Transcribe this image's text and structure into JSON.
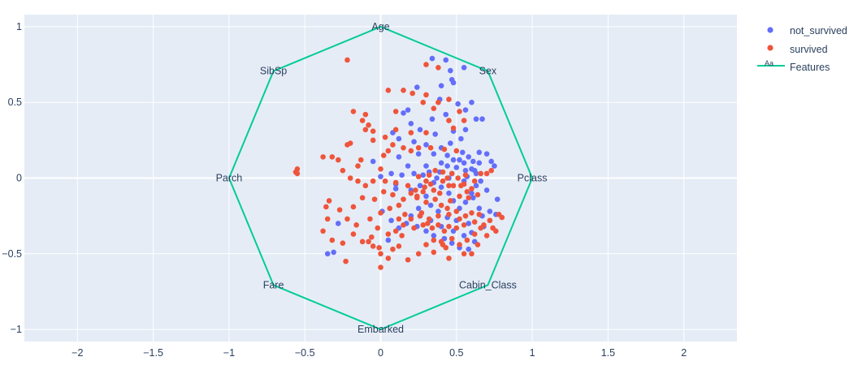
{
  "chart_data": {
    "type": "scatter",
    "title": "",
    "xlabel": "",
    "ylabel": "",
    "xlim": [
      -2.35,
      2.35
    ],
    "ylim": [
      -1.08,
      1.08
    ],
    "x_ticks": [
      -2,
      -1.5,
      -1,
      -0.5,
      0,
      0.5,
      1,
      1.5,
      2
    ],
    "x_tick_labels": [
      "−2",
      "−1.5",
      "−1",
      "−0.5",
      "0",
      "0.5",
      "1",
      "1.5",
      "2"
    ],
    "y_ticks": [
      1,
      0.5,
      0,
      -0.5,
      -1
    ],
    "y_tick_labels": [
      "1",
      "0.5",
      "0",
      "−0.5",
      "−1"
    ],
    "grid": true,
    "legend_position": "top-right",
    "colors": {
      "plot_bg": "#e5ecf6",
      "grid": "#ffffff",
      "not_survived": "#636efa",
      "survived": "#ef553b",
      "features": "#00cc96"
    },
    "features": {
      "name": "Features",
      "labels": [
        "Age",
        "Sex",
        "Pclass",
        "Cabin_Class",
        "Embarked",
        "Fare",
        "Parch",
        "SibSp"
      ],
      "x": [
        0,
        0.707,
        1,
        0.707,
        0,
        -0.707,
        -1,
        -0.707
      ],
      "y": [
        1,
        0.707,
        0,
        -0.707,
        -1,
        -0.707,
        0,
        0.707
      ]
    },
    "series": [
      {
        "name": "not_survived",
        "points": [
          [
            0.34,
            0.79
          ],
          [
            0.43,
            0.78
          ],
          [
            0.46,
            0.71
          ],
          [
            0.55,
            0.73
          ],
          [
            0.48,
            0.63
          ],
          [
            0.24,
            0.6
          ],
          [
            0.4,
            0.61
          ],
          [
            0.47,
            0.65
          ],
          [
            0.18,
            0.45
          ],
          [
            0.39,
            0.52
          ],
          [
            0.51,
            0.49
          ],
          [
            0.6,
            0.5
          ],
          [
            0.63,
            0.39
          ],
          [
            0.15,
            0.43
          ],
          [
            0.2,
            0.36
          ],
          [
            0.34,
            0.39
          ],
          [
            0.43,
            0.42
          ],
          [
            0.56,
            0.45
          ],
          [
            0.67,
            0.39
          ],
          [
            0.26,
            0.32
          ],
          [
            0.36,
            0.29
          ],
          [
            0.48,
            0.31
          ],
          [
            0.53,
            0.26
          ],
          [
            0.56,
            0.32
          ],
          [
            0.08,
            0.3
          ],
          [
            0.12,
            0.26
          ],
          [
            0.22,
            0.24
          ],
          [
            0.3,
            0.22
          ],
          [
            0.4,
            0.2
          ],
          [
            0.46,
            0.23
          ],
          [
            0.12,
            0.14
          ],
          [
            0.25,
            0.16
          ],
          [
            0.35,
            0.16
          ],
          [
            0.44,
            0.15
          ],
          [
            0.54,
            0.17
          ],
          [
            0.65,
            0.17
          ],
          [
            0.7,
            0.16
          ],
          [
            0.73,
            0.11
          ],
          [
            0.75,
            0.08
          ],
          [
            0.62,
            0.05
          ],
          [
            0.65,
            0.1
          ],
          [
            0.55,
            0.1
          ],
          [
            0.56,
            0.05
          ],
          [
            0.6,
            0.06
          ],
          [
            0.58,
            0.14
          ],
          [
            0.61,
            0.11
          ],
          [
            0.63,
            0.03
          ],
          [
            0.57,
            0.01
          ],
          [
            0.55,
            -0.02
          ],
          [
            0.52,
            0.12
          ],
          [
            0.5,
            0.07
          ],
          [
            0.47,
            0.03
          ],
          [
            0.45,
            0.0
          ],
          [
            0.44,
            0.08
          ],
          [
            0.48,
            0.12
          ],
          [
            0.4,
            0.1
          ],
          [
            0.39,
            0.04
          ],
          [
            0.37,
            0.0
          ],
          [
            0.35,
            -0.03
          ],
          [
            0.32,
            0.04
          ],
          [
            0.3,
            0.08
          ],
          [
            0.28,
            0.02
          ],
          [
            0.26,
            -0.05
          ],
          [
            0.22,
            0.03
          ],
          [
            0.2,
            -0.08
          ],
          [
            0.18,
            0.08
          ],
          [
            0.14,
            0.02
          ],
          [
            0.1,
            -0.04
          ],
          [
            0.4,
            -0.06
          ],
          [
            0.45,
            -0.1
          ],
          [
            0.48,
            -0.15
          ],
          [
            0.52,
            -0.2
          ],
          [
            0.56,
            -0.16
          ],
          [
            0.6,
            -0.1
          ],
          [
            0.63,
            -0.05
          ],
          [
            0.65,
            -0.2
          ],
          [
            0.67,
            -0.25
          ],
          [
            0.58,
            -0.3
          ],
          [
            0.5,
            -0.28
          ],
          [
            0.44,
            -0.26
          ],
          [
            0.38,
            -0.22
          ],
          [
            0.33,
            -0.18
          ],
          [
            0.3,
            -0.12
          ],
          [
            0.25,
            -0.2
          ],
          [
            0.2,
            -0.25
          ],
          [
            0.17,
            -0.3
          ],
          [
            0.24,
            -0.32
          ],
          [
            0.3,
            -0.35
          ],
          [
            0.35,
            -0.38
          ],
          [
            0.42,
            -0.4
          ],
          [
            0.47,
            -0.43
          ],
          [
            0.52,
            -0.46
          ],
          [
            0.58,
            -0.47
          ],
          [
            0.62,
            -0.42
          ],
          [
            0.55,
            -0.38
          ],
          [
            0.48,
            -0.35
          ],
          [
            0.4,
            -0.32
          ],
          [
            0.33,
            -0.28
          ],
          [
            0.26,
            -0.25
          ],
          [
            0.6,
            -0.36
          ],
          [
            0.68,
            -0.32
          ],
          [
            0.72,
            -0.22
          ],
          [
            0.76,
            -0.24
          ],
          [
            0.77,
            -0.14
          ],
          [
            0.7,
            -0.08
          ],
          [
            0.66,
            -0.02
          ],
          [
            0.61,
            -0.13
          ],
          [
            -0.28,
            -0.3
          ],
          [
            -0.31,
            -0.49
          ],
          [
            -0.35,
            -0.5
          ],
          [
            0.01,
            -0.22
          ],
          [
            0.07,
            -0.28
          ],
          [
            0.12,
            -0.33
          ],
          [
            0.05,
            -0.41
          ],
          [
            0.1,
            -0.07
          ],
          [
            0.0,
            0.01
          ],
          [
            0.07,
            0.03
          ],
          [
            -0.05,
            0.11
          ]
        ]
      },
      {
        "name": "survived",
        "points": [
          [
            -0.22,
            0.78
          ],
          [
            0.3,
            0.75
          ],
          [
            0.38,
            0.73
          ],
          [
            0.05,
            0.58
          ],
          [
            0.15,
            0.58
          ],
          [
            0.21,
            0.56
          ],
          [
            0.3,
            0.55
          ],
          [
            0.28,
            0.5
          ],
          [
            0.38,
            0.5
          ],
          [
            0.45,
            0.52
          ],
          [
            0.35,
            0.46
          ],
          [
            0.52,
            0.44
          ],
          [
            0.1,
            0.44
          ],
          [
            -0.18,
            0.44
          ],
          [
            -0.1,
            0.42
          ],
          [
            0.45,
            0.38
          ],
          [
            0.55,
            0.38
          ],
          [
            0.48,
            0.33
          ],
          [
            -0.12,
            0.38
          ],
          [
            -0.08,
            0.35
          ],
          [
            -0.05,
            0.31
          ],
          [
            -0.1,
            0.32
          ],
          [
            0.1,
            0.32
          ],
          [
            0.2,
            0.3
          ],
          [
            0.3,
            0.3
          ],
          [
            -0.05,
            0.25
          ],
          [
            0.03,
            0.27
          ],
          [
            0.08,
            0.22
          ],
          [
            0.15,
            0.2
          ],
          [
            0.2,
            0.18
          ],
          [
            0.25,
            0.2
          ],
          [
            0.33,
            0.2
          ],
          [
            0.42,
            0.19
          ],
          [
            0.5,
            0.18
          ],
          [
            0.05,
            0.18
          ],
          [
            0.02,
            0.15
          ],
          [
            -0.2,
            0.23
          ],
          [
            -0.22,
            0.22
          ],
          [
            -0.32,
            0.14
          ],
          [
            -0.28,
            0.12
          ],
          [
            -0.38,
            0.14
          ],
          [
            -0.13,
            0.12
          ],
          [
            -0.15,
            0.08
          ],
          [
            0.0,
            0.06
          ],
          [
            -0.25,
            0.05
          ],
          [
            -0.55,
            0.06
          ],
          [
            -0.56,
            0.04
          ],
          [
            -0.55,
            0.03
          ],
          [
            -0.2,
            0.0
          ],
          [
            -0.15,
            -0.02
          ],
          [
            -0.1,
            -0.05
          ],
          [
            -0.05,
            -0.02
          ],
          [
            0.03,
            -0.02
          ],
          [
            0.1,
            -0.03
          ],
          [
            0.18,
            -0.05
          ],
          [
            0.25,
            0.01
          ],
          [
            0.33,
            -0.04
          ],
          [
            0.41,
            -0.02
          ],
          [
            0.48,
            -0.05
          ],
          [
            0.55,
            -0.04
          ],
          [
            0.6,
            -0.07
          ],
          [
            0.64,
            -0.11
          ],
          [
            0.57,
            -0.09
          ],
          [
            0.52,
            -0.12
          ],
          [
            0.46,
            -0.15
          ],
          [
            0.4,
            -0.18
          ],
          [
            0.36,
            -0.14
          ],
          [
            0.3,
            -0.16
          ],
          [
            0.24,
            -0.12
          ],
          [
            0.15,
            -0.14
          ],
          [
            0.12,
            -0.18
          ],
          [
            0.08,
            -0.11
          ],
          [
            0.02,
            -0.09
          ],
          [
            -0.04,
            -0.14
          ],
          [
            -0.12,
            -0.13
          ],
          [
            -0.18,
            -0.19
          ],
          [
            -0.27,
            -0.21
          ],
          [
            -0.34,
            -0.15
          ],
          [
            -0.36,
            -0.19
          ],
          [
            -0.35,
            -0.27
          ],
          [
            -0.22,
            -0.27
          ],
          [
            -0.16,
            -0.31
          ],
          [
            -0.07,
            -0.27
          ],
          [
            0.0,
            -0.23
          ],
          [
            0.06,
            -0.2
          ],
          [
            0.12,
            -0.27
          ],
          [
            0.16,
            -0.24
          ],
          [
            0.2,
            -0.27
          ],
          [
            0.27,
            -0.23
          ],
          [
            0.32,
            -0.27
          ],
          [
            0.38,
            -0.25
          ],
          [
            0.45,
            -0.24
          ],
          [
            0.52,
            -0.27
          ],
          [
            0.56,
            -0.25
          ],
          [
            0.6,
            -0.23
          ],
          [
            0.65,
            -0.24
          ],
          [
            0.72,
            -0.28
          ],
          [
            0.78,
            -0.24
          ],
          [
            0.8,
            -0.26
          ],
          [
            0.74,
            -0.33
          ],
          [
            0.68,
            -0.31
          ],
          [
            0.62,
            -0.29
          ],
          [
            0.55,
            -0.31
          ],
          [
            0.5,
            -0.33
          ],
          [
            0.45,
            -0.32
          ],
          [
            0.42,
            -0.35
          ],
          [
            0.38,
            -0.31
          ],
          [
            0.34,
            -0.33
          ],
          [
            0.28,
            -0.31
          ],
          [
            0.22,
            -0.33
          ],
          [
            0.15,
            -0.31
          ],
          [
            0.1,
            -0.35
          ],
          [
            0.05,
            -0.37
          ],
          [
            -0.02,
            -0.33
          ],
          [
            -0.06,
            -0.39
          ],
          [
            -0.12,
            -0.42
          ],
          [
            -0.18,
            -0.37
          ],
          [
            -0.25,
            -0.43
          ],
          [
            -0.32,
            -0.41
          ],
          [
            -0.38,
            -0.35
          ],
          [
            -0.23,
            -0.55
          ],
          [
            -0.05,
            -0.45
          ],
          [
            0.0,
            -0.5
          ],
          [
            0.0,
            -0.59
          ],
          [
            0.05,
            -0.53
          ],
          [
            0.12,
            -0.45
          ],
          [
            0.18,
            -0.54
          ],
          [
            0.25,
            -0.5
          ],
          [
            0.3,
            -0.44
          ],
          [
            0.35,
            -0.49
          ],
          [
            0.4,
            -0.42
          ],
          [
            0.43,
            -0.46
          ],
          [
            0.47,
            -0.4
          ],
          [
            0.52,
            -0.44
          ],
          [
            0.57,
            -0.41
          ],
          [
            0.62,
            -0.37
          ],
          [
            0.66,
            -0.33
          ],
          [
            0.5,
            -0.22
          ],
          [
            0.44,
            -0.2
          ],
          [
            0.39,
            -0.1
          ],
          [
            0.35,
            -0.08
          ],
          [
            0.29,
            -0.06
          ],
          [
            0.23,
            -0.08
          ],
          [
            0.2,
            -0.1
          ],
          [
            0.47,
            0.03
          ],
          [
            0.51,
            0.0
          ],
          [
            0.53,
            -0.05
          ],
          [
            0.56,
            0.02
          ],
          [
            0.58,
            -0.13
          ],
          [
            0.62,
            -0.02
          ],
          [
            0.66,
            0.03
          ],
          [
            0.7,
            0.03
          ],
          [
            0.73,
            0.05
          ],
          [
            0.45,
            -0.05
          ],
          [
            0.44,
            0.0
          ],
          [
            0.41,
            0.04
          ],
          [
            0.36,
            0.05
          ],
          [
            0.32,
            0.02
          ],
          [
            0.3,
            -0.02
          ],
          [
            0.28,
            -0.09
          ],
          [
            0.24,
            -0.13
          ],
          [
            0.26,
            -0.25
          ],
          [
            0.31,
            -0.3
          ],
          [
            0.35,
            -0.41
          ],
          [
            0.41,
            -0.44
          ],
          [
            0.45,
            -0.53
          ],
          [
            0.55,
            -0.5
          ],
          [
            0.6,
            -0.5
          ],
          [
            0.64,
            -0.44
          ],
          [
            0.7,
            -0.38
          ],
          [
            0.76,
            -0.35
          ],
          [
            0.14,
            -0.38
          ],
          [
            0.08,
            -0.47
          ],
          [
            -0.01,
            -0.46
          ],
          [
            -0.08,
            -0.42
          ]
        ]
      }
    ]
  },
  "legend": {
    "items": [
      {
        "label": "not_survived",
        "marker": "dot"
      },
      {
        "label": "survived",
        "marker": "dot"
      },
      {
        "label": "Features",
        "marker": "line",
        "marker_text": "Aa"
      }
    ]
  }
}
